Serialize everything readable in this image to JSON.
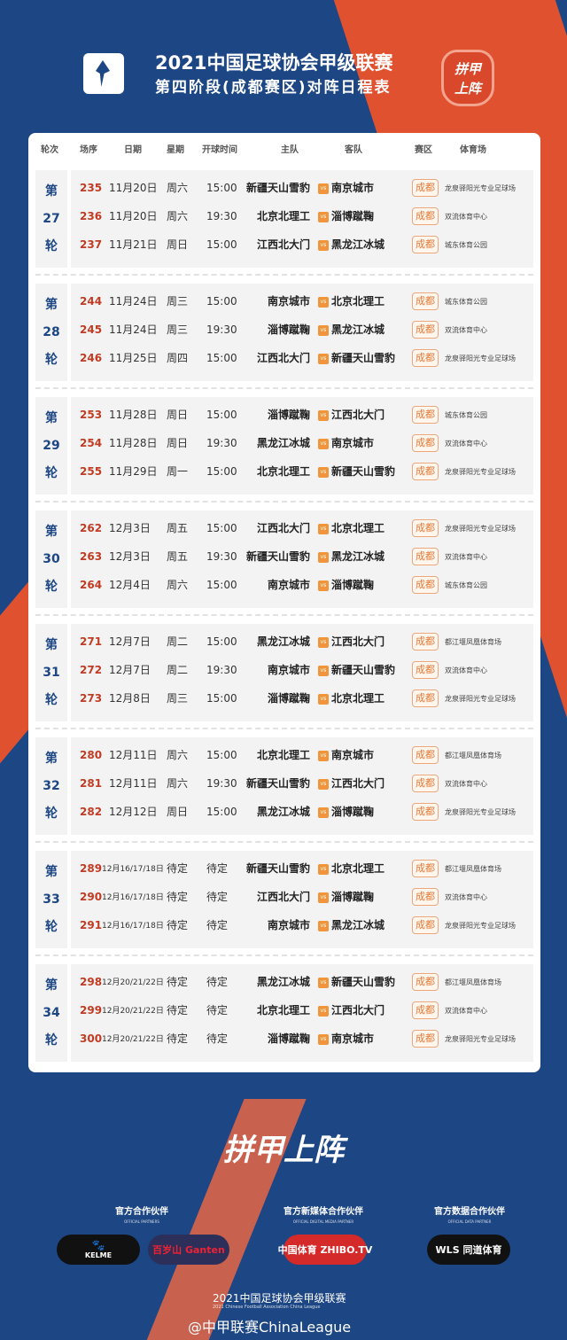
{
  "header": {
    "title": "2021中国足球协会甲级联赛",
    "subtitle": "第四阶段(成都赛区)对阵日程表",
    "badge": "拼甲上阵"
  },
  "columns": [
    "轮次",
    "场序",
    "日期",
    "星期",
    "开球时间",
    "主队",
    "客队",
    "赛区",
    "体育场"
  ],
  "vs": "vs",
  "round_prefix": "第",
  "round_suffix": "轮",
  "rounds": [
    {
      "round": "27",
      "matches": [
        {
          "no": "235",
          "date": "11月20日",
          "weekday": "周六",
          "time": "15:00",
          "home": "新疆天山雪豹",
          "away": "南京城市",
          "zone": "成都",
          "venue": "龙泉驿阳光专业足球场"
        },
        {
          "no": "236",
          "date": "11月20日",
          "weekday": "周六",
          "time": "19:30",
          "home": "北京北理工",
          "away": "淄博蹴鞠",
          "zone": "成都",
          "venue": "双流体育中心"
        },
        {
          "no": "237",
          "date": "11月21日",
          "weekday": "周日",
          "time": "15:00",
          "home": "江西北大门",
          "away": "黑龙江冰城",
          "zone": "成都",
          "venue": "城东体育公园"
        }
      ]
    },
    {
      "round": "28",
      "matches": [
        {
          "no": "244",
          "date": "11月24日",
          "weekday": "周三",
          "time": "15:00",
          "home": "南京城市",
          "away": "北京北理工",
          "zone": "成都",
          "venue": "城东体育公园"
        },
        {
          "no": "245",
          "date": "11月24日",
          "weekday": "周三",
          "time": "19:30",
          "home": "淄博蹴鞠",
          "away": "黑龙江冰城",
          "zone": "成都",
          "venue": "双流体育中心"
        },
        {
          "no": "246",
          "date": "11月25日",
          "weekday": "周四",
          "time": "15:00",
          "home": "江西北大门",
          "away": "新疆天山雪豹",
          "zone": "成都",
          "venue": "龙泉驿阳光专业足球场"
        }
      ]
    },
    {
      "round": "29",
      "matches": [
        {
          "no": "253",
          "date": "11月28日",
          "weekday": "周日",
          "time": "15:00",
          "home": "淄博蹴鞠",
          "away": "江西北大门",
          "zone": "成都",
          "venue": "城东体育公园"
        },
        {
          "no": "254",
          "date": "11月28日",
          "weekday": "周日",
          "time": "19:30",
          "home": "黑龙江冰城",
          "away": "南京城市",
          "zone": "成都",
          "venue": "双流体育中心"
        },
        {
          "no": "255",
          "date": "11月29日",
          "weekday": "周一",
          "time": "15:00",
          "home": "北京北理工",
          "away": "新疆天山雪豹",
          "zone": "成都",
          "venue": "龙泉驿阳光专业足球场"
        }
      ]
    },
    {
      "round": "30",
      "matches": [
        {
          "no": "262",
          "date": "12月3日",
          "weekday": "周五",
          "time": "15:00",
          "home": "江西北大门",
          "away": "北京北理工",
          "zone": "成都",
          "venue": "龙泉驿阳光专业足球场"
        },
        {
          "no": "263",
          "date": "12月3日",
          "weekday": "周五",
          "time": "19:30",
          "home": "新疆天山雪豹",
          "away": "黑龙江冰城",
          "zone": "成都",
          "venue": "双流体育中心"
        },
        {
          "no": "264",
          "date": "12月4日",
          "weekday": "周六",
          "time": "15:00",
          "home": "南京城市",
          "away": "淄博蹴鞠",
          "zone": "成都",
          "venue": "城东体育公园"
        }
      ]
    },
    {
      "round": "31",
      "matches": [
        {
          "no": "271",
          "date": "12月7日",
          "weekday": "周二",
          "time": "15:00",
          "home": "黑龙江冰城",
          "away": "江西北大门",
          "zone": "成都",
          "venue": "都江堰凤凰体育场"
        },
        {
          "no": "272",
          "date": "12月7日",
          "weekday": "周二",
          "time": "19:30",
          "home": "南京城市",
          "away": "新疆天山雪豹",
          "zone": "成都",
          "venue": "双流体育中心"
        },
        {
          "no": "273",
          "date": "12月8日",
          "weekday": "周三",
          "time": "15:00",
          "home": "淄博蹴鞠",
          "away": "北京北理工",
          "zone": "成都",
          "venue": "龙泉驿阳光专业足球场"
        }
      ]
    },
    {
      "round": "32",
      "matches": [
        {
          "no": "280",
          "date": "12月11日",
          "weekday": "周六",
          "time": "15:00",
          "home": "北京北理工",
          "away": "南京城市",
          "zone": "成都",
          "venue": "都江堰凤凰体育场"
        },
        {
          "no": "281",
          "date": "12月11日",
          "weekday": "周六",
          "time": "19:30",
          "home": "新疆天山雪豹",
          "away": "江西北大门",
          "zone": "成都",
          "venue": "双流体育中心"
        },
        {
          "no": "282",
          "date": "12月12日",
          "weekday": "周日",
          "time": "15:00",
          "home": "黑龙江冰城",
          "away": "淄博蹴鞠",
          "zone": "成都",
          "venue": "龙泉驿阳光专业足球场"
        }
      ]
    },
    {
      "round": "33",
      "matches": [
        {
          "no": "289",
          "date": "12月16/17/18日",
          "weekday": "待定",
          "time": "待定",
          "home": "新疆天山雪豹",
          "away": "北京北理工",
          "zone": "成都",
          "venue": "都江堰凤凰体育场"
        },
        {
          "no": "290",
          "date": "12月16/17/18日",
          "weekday": "待定",
          "time": "待定",
          "home": "江西北大门",
          "away": "淄博蹴鞠",
          "zone": "成都",
          "venue": "双流体育中心"
        },
        {
          "no": "291",
          "date": "12月16/17/18日",
          "weekday": "待定",
          "time": "待定",
          "home": "南京城市",
          "away": "黑龙江冰城",
          "zone": "成都",
          "venue": "龙泉驿阳光专业足球场"
        }
      ]
    },
    {
      "round": "34",
      "matches": [
        {
          "no": "298",
          "date": "12月20/21/22日",
          "weekday": "待定",
          "time": "待定",
          "home": "黑龙江冰城",
          "away": "新疆天山雪豹",
          "zone": "成都",
          "venue": "都江堰凤凰体育场"
        },
        {
          "no": "299",
          "date": "12月20/21/22日",
          "weekday": "待定",
          "time": "待定",
          "home": "北京北理工",
          "away": "江西北大门",
          "zone": "成都",
          "venue": "双流体育中心"
        },
        {
          "no": "300",
          "date": "12月20/21/22日",
          "weekday": "待定",
          "time": "待定",
          "home": "淄博蹴鞠",
          "away": "南京城市",
          "zone": "成都",
          "venue": "龙泉驿阳光专业足球场"
        }
      ]
    }
  ],
  "slogan": "拼甲上阵",
  "partners": [
    {
      "cn": "官方合作伙伴",
      "en": "OFFICIAL PARTNERS",
      "logos": [
        "KELME",
        "百岁山 Ganten"
      ]
    },
    {
      "cn": "官方新媒体合作伙伴",
      "en": "OFFICIAL DIGITAL MEDIA PARTNER",
      "logos": [
        "中国体育 ZHIBO.TV"
      ]
    },
    {
      "cn": "官方数据合作伙伴",
      "en": "OFFICIAL DATA PARTNER",
      "logos": [
        "WLS 同道体育"
      ]
    }
  ],
  "footer": {
    "title": "2021中国足球协会甲级联赛",
    "subtitle": "2021 Chinese Football Association China League",
    "watermark": "@中甲联赛ChinaLeague"
  },
  "colors": {
    "blue": "#1d4684",
    "orange": "#e0522f",
    "number": "#c23b22",
    "zone": "#e57937"
  }
}
